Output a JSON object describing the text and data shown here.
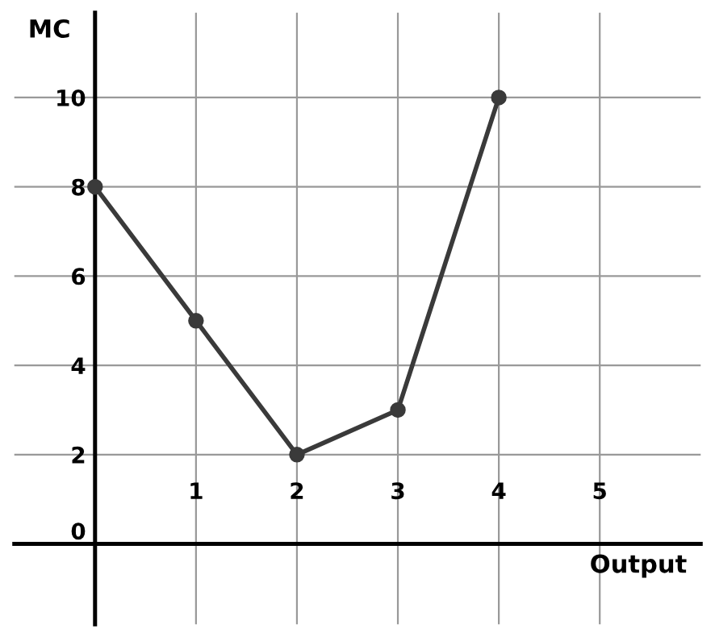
{
  "chart_data": {
    "type": "line",
    "xlabel": "Output",
    "ylabel": "MC",
    "x": [
      0,
      1,
      2,
      3,
      4
    ],
    "series": [
      {
        "color": "#3a3a3a",
        "values": [
          8,
          5,
          2,
          3,
          10
        ]
      }
    ],
    "xlim": [
      -0.8,
      6
    ],
    "ylim": [
      -1.8,
      11.9
    ],
    "xticks": [
      1,
      2,
      3,
      4,
      5
    ],
    "yticks": [
      0,
      2,
      4,
      6,
      8,
      10
    ],
    "grid": true,
    "marker": "circle",
    "line_style": "solid"
  }
}
